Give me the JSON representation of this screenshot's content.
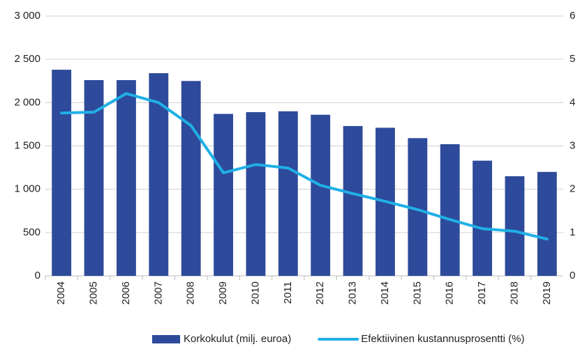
{
  "chart_data": {
    "type": "bar_line",
    "categories": [
      "2004",
      "2005",
      "2006",
      "2007",
      "2008",
      "2009",
      "2010",
      "2011",
      "2012",
      "2013",
      "2014",
      "2015",
      "2016",
      "2017",
      "2018",
      "2019"
    ],
    "series": [
      {
        "name": "Korkokulut (milj. euroa)",
        "type": "bar",
        "color": "#2e4a9a",
        "values": [
          2380,
          2260,
          2260,
          2340,
          2250,
          1870,
          1890,
          1900,
          1860,
          1730,
          1710,
          1590,
          1520,
          1330,
          1150,
          1200
        ]
      },
      {
        "name": "Efektiivinen kustannusprosentti (%)",
        "type": "line",
        "axis": "y2",
        "color": "#1fb0e6",
        "values": [
          3.76,
          3.78,
          4.21,
          4.0,
          3.47,
          2.38,
          2.57,
          2.49,
          2.09,
          1.9,
          1.72,
          1.53,
          1.3,
          1.09,
          1.03,
          0.85
        ]
      }
    ],
    "ylim": [
      0,
      3000
    ],
    "yticks": [
      0,
      500,
      {
        "value": 1000,
        "label": "1 000"
      },
      {
        "value": 1500,
        "label": "1 500"
      },
      {
        "value": 2000,
        "label": "2 000"
      },
      {
        "value": 2500,
        "label": "2 500"
      },
      {
        "value": 3000,
        "label": "3 000"
      }
    ],
    "y2lim": [
      0,
      6
    ],
    "y2ticks": [
      0,
      1,
      2,
      3,
      4,
      5,
      6
    ],
    "grid": true,
    "legend": "bottom"
  }
}
